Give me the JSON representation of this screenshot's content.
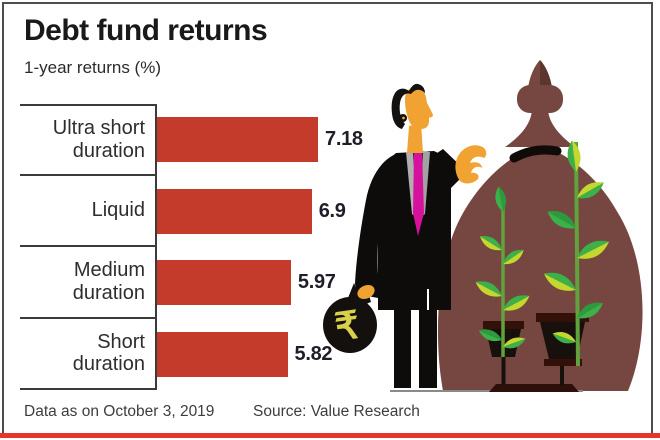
{
  "header": {
    "title": "Debt fund returns",
    "subtitle": "1-year returns (%)"
  },
  "chart_data": {
    "type": "bar",
    "orientation": "horizontal",
    "title": "Debt fund returns",
    "subtitle": "1-year returns (%)",
    "categories": [
      "Ultra short duration",
      "Liquid",
      "Medium duration",
      "Short duration"
    ],
    "values": [
      7.18,
      6.9,
      5.97,
      5.82
    ],
    "value_labels": [
      "7.18",
      "6.9",
      "5.97",
      "5.82"
    ],
    "xlabel": "",
    "ylabel": "",
    "xlim": [
      0,
      7.5
    ],
    "grid": false,
    "legend": false,
    "bar_color": "#c43b2c"
  },
  "footer": {
    "data_note": "Data as on October 3, 2019",
    "source": "Source: Value Research"
  },
  "illustration": {
    "rupee_symbol": "₹"
  },
  "colors": {
    "bar_red": "#c43b2c",
    "accent_line_red": "#e6352b",
    "pot_brown": "#764740",
    "leaf_green": "#3cb14a",
    "leaf_yellow_green": "#c3d82f",
    "leaf_dark_green": "#2d9a3e",
    "suit_black": "#0e0b0b",
    "skin_orange": "#f0a232",
    "tie_magenta": "#d6119b",
    "rupee_yellow": "#d8d24a"
  }
}
